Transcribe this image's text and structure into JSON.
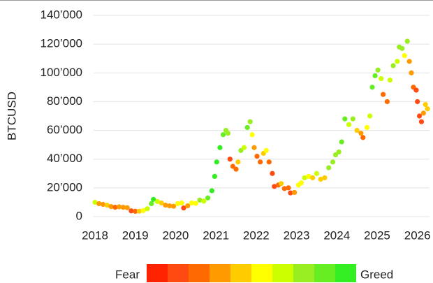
{
  "chart_data": {
    "type": "scatter",
    "y_label": "BTCUSD",
    "xlim": [
      2018,
      2026.3
    ],
    "xticks": [
      2018,
      2019,
      2020,
      2021,
      2022,
      2023,
      2024,
      2025,
      2026
    ],
    "ylim": [
      0,
      140000
    ],
    "yticks": [
      {
        "value": 0,
        "label": "0"
      },
      {
        "value": 20000,
        "label": "20’000"
      },
      {
        "value": 40000,
        "label": "40’000"
      },
      {
        "value": 60000,
        "label": "60’000"
      },
      {
        "value": 80000,
        "label": "80’000"
      },
      {
        "value": 100000,
        "label": "100’000"
      },
      {
        "value": 120000,
        "label": "120’000"
      },
      {
        "value": 140000,
        "label": "140’000"
      }
    ],
    "grid": true,
    "legend": {
      "low": "Fear",
      "high": "Greed"
    },
    "colorscale": [
      "#ff2200",
      "#ff4a12",
      "#ff6a00",
      "#ff9a00",
      "#ffcc00",
      "#ffff00",
      "#ccff00",
      "#99ee22",
      "#66ee22",
      "#33ee22"
    ],
    "x": [
      2018.0,
      2018.1,
      2018.2,
      2018.3,
      2018.4,
      2018.5,
      2018.6,
      2018.7,
      2018.8,
      2018.9,
      2019.0,
      2019.1,
      2019.2,
      2019.3,
      2019.4,
      2019.45,
      2019.55,
      2019.65,
      2019.75,
      2019.85,
      2019.95,
      2020.05,
      2020.15,
      2020.2,
      2020.3,
      2020.4,
      2020.5,
      2020.6,
      2020.7,
      2020.8,
      2020.9,
      2020.97,
      2021.02,
      2021.1,
      2021.18,
      2021.25,
      2021.3,
      2021.35,
      2021.42,
      2021.5,
      2021.55,
      2021.62,
      2021.7,
      2021.78,
      2021.85,
      2021.9,
      2021.95,
      2022.02,
      2022.1,
      2022.18,
      2022.25,
      2022.32,
      2022.4,
      2022.45,
      2022.55,
      2022.62,
      2022.7,
      2022.8,
      2022.85,
      2022.95,
      2023.05,
      2023.12,
      2023.2,
      2023.3,
      2023.4,
      2023.5,
      2023.6,
      2023.7,
      2023.8,
      2023.9,
      2023.97,
      2024.05,
      2024.12,
      2024.2,
      2024.3,
      2024.4,
      2024.5,
      2024.6,
      2024.65,
      2024.75,
      2024.82,
      2024.88,
      2024.95,
      2025.02,
      2025.1,
      2025.15,
      2025.25,
      2025.32,
      2025.4,
      2025.5,
      2025.55,
      2025.62,
      2025.68,
      2025.75,
      2025.8,
      2025.85,
      2025.9,
      2025.97,
      2026.0,
      2026.05,
      2026.1,
      2026.15,
      2026.2,
      2026.25
    ],
    "values": [
      10000,
      9000,
      8500,
      8000,
      7000,
      6500,
      6800,
      6500,
      6200,
      4000,
      3700,
      3800,
      4200,
      5500,
      9000,
      12000,
      10500,
      9500,
      8000,
      7500,
      7200,
      9000,
      9500,
      6000,
      7500,
      9500,
      9200,
      11500,
      10800,
      13000,
      18000,
      28000,
      38000,
      48000,
      57000,
      60000,
      58000,
      40000,
      35000,
      33000,
      38000,
      46000,
      48000,
      62000,
      66000,
      57000,
      48000,
      42000,
      38000,
      44000,
      46000,
      38000,
      30000,
      21000,
      22000,
      23000,
      19500,
      20000,
      16500,
      16800,
      22000,
      23500,
      27000,
      28000,
      27000,
      30000,
      26000,
      27000,
      34000,
      38000,
      43000,
      45000,
      52000,
      68000,
      64000,
      68000,
      60000,
      58000,
      55000,
      62000,
      70000,
      90000,
      98000,
      102000,
      96000,
      85000,
      80000,
      95000,
      105000,
      108000,
      118000,
      117000,
      112000,
      122000,
      108000,
      100000,
      90000,
      88000,
      80000,
      70000,
      66000,
      72000,
      78000,
      75000
    ],
    "sentiment": [
      60,
      30,
      30,
      40,
      30,
      25,
      35,
      30,
      30,
      15,
      25,
      40,
      55,
      65,
      85,
      90,
      60,
      40,
      35,
      30,
      35,
      55,
      50,
      10,
      30,
      50,
      50,
      75,
      60,
      80,
      90,
      95,
      90,
      90,
      85,
      75,
      70,
      15,
      20,
      20,
      45,
      70,
      60,
      80,
      75,
      55,
      30,
      20,
      25,
      40,
      50,
      20,
      15,
      10,
      25,
      45,
      25,
      25,
      15,
      30,
      55,
      55,
      60,
      55,
      45,
      60,
      40,
      45,
      70,
      70,
      75,
      70,
      80,
      85,
      65,
      70,
      45,
      30,
      25,
      50,
      60,
      85,
      85,
      75,
      60,
      25,
      20,
      60,
      75,
      65,
      70,
      70,
      55,
      70,
      35,
      30,
      20,
      15,
      15,
      15,
      10,
      30,
      45,
      40
    ]
  }
}
